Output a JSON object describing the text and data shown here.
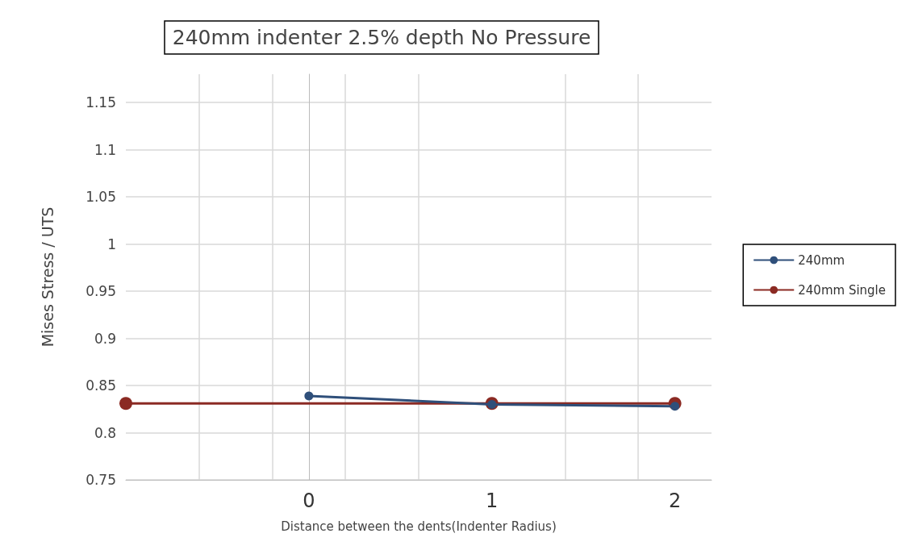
{
  "chart_data": {
    "type": "line",
    "title": "240mm indenter 2.5% depth No Pressure",
    "xlabel": "Distance between the dents(Indenter Radius)",
    "ylabel": "Mises Stress / UTS",
    "xlim": [
      -1,
      2.2
    ],
    "xticks": [
      {
        "value": -0.6,
        "label": null
      },
      {
        "value": -0.2,
        "label": null
      },
      {
        "value": 0,
        "label": "0"
      },
      {
        "value": 0.2,
        "label": null
      },
      {
        "value": 0.6,
        "label": null
      },
      {
        "value": 1,
        "label": "1"
      },
      {
        "value": 1.4,
        "label": null
      },
      {
        "value": 1.8,
        "label": null
      },
      {
        "value": 2,
        "label": "2"
      }
    ],
    "ylim": [
      0.75,
      1.18
    ],
    "yticks": [
      0.75,
      0.8,
      0.85,
      0.9,
      0.95,
      1,
      1.05,
      1.1,
      1.15
    ],
    "series": [
      {
        "name": "240mm",
        "color": "#2f4f7a",
        "x": [
          0,
          1,
          2
        ],
        "values": [
          0.839,
          0.83,
          0.828
        ]
      },
      {
        "name": "240mm Single",
        "color": "#8b2a23",
        "x": [
          -1,
          1,
          2
        ],
        "values": [
          0.831,
          0.831,
          0.831
        ]
      }
    ],
    "grid": true,
    "legend": "right",
    "marker": "circle",
    "line_style": "solid"
  }
}
